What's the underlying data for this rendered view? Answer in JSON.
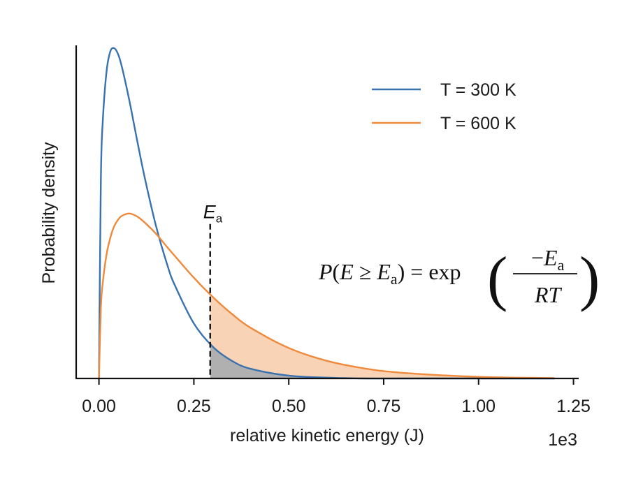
{
  "chart_data": {
    "type": "line",
    "xlabel": "relative kinetic energy (J)",
    "ylabel": "Probability density",
    "x_offset_label": "1e3",
    "xlim": [
      -0.06,
      1.26
    ],
    "ylim": [
      0,
      0.0083
    ],
    "xticks": [
      "0.00",
      "0.25",
      "0.50",
      "0.75",
      "1.00",
      "1.25"
    ],
    "xtick_values": [
      0.0,
      0.25,
      0.5,
      0.75,
      1.0,
      1.25
    ],
    "yticks_shown": false,
    "grid": false,
    "legend_position": "top-right",
    "x": [
      0.0,
      0.005,
      0.01,
      0.02,
      0.03,
      0.04,
      0.05,
      0.06,
      0.08,
      0.1,
      0.12,
      0.15,
      0.18,
      0.2,
      0.25,
      0.3,
      0.35,
      0.4,
      0.5,
      0.6,
      0.7,
      0.8,
      1.0,
      1.2
    ],
    "series": [
      {
        "name": "T = 300 K",
        "color": "#3a72b0",
        "values": [
          0.0,
          0.00495,
          0.0064,
          0.00765,
          0.00815,
          0.00823,
          0.00809,
          0.00778,
          0.00693,
          0.00596,
          0.00503,
          0.00381,
          0.00283,
          0.00232,
          0.00137,
          0.00079,
          0.00044,
          0.00024,
          7e-05,
          2e-05,
          0.0,
          0.0,
          0.0,
          0.0
        ]
      },
      {
        "name": "T = 600 K",
        "color": "#ef8a3c",
        "values": [
          0.0,
          0.00176,
          0.00238,
          0.00309,
          0.00351,
          0.00379,
          0.00395,
          0.00405,
          0.00411,
          0.00404,
          0.00389,
          0.00361,
          0.00327,
          0.00305,
          0.00251,
          0.00203,
          0.00161,
          0.00126,
          0.00076,
          0.00044,
          0.00025,
          0.00014,
          4e-05,
          1e-05
        ]
      }
    ],
    "activation_energy": {
      "label": "E",
      "subscript": "a",
      "x": 0.293
    },
    "shading": {
      "under_300K_beyond_Ea_color": "#b0b0b0",
      "under_600K_beyond_Ea_color": "#f8d3b5"
    },
    "formula": {
      "lhs_P": "P",
      "lhs_open": "(",
      "lhs_E": "E",
      "lhs_ge": " ≥ ",
      "lhs_Ea": "E",
      "lhs_a": "a",
      "lhs_close": ")",
      "eq": " = ",
      "exp": "exp",
      "numerator_minus": "−",
      "numerator_E": "E",
      "numerator_a": "a",
      "denominator": "RT",
      "paren_open": "(",
      "paren_close": ")"
    }
  }
}
